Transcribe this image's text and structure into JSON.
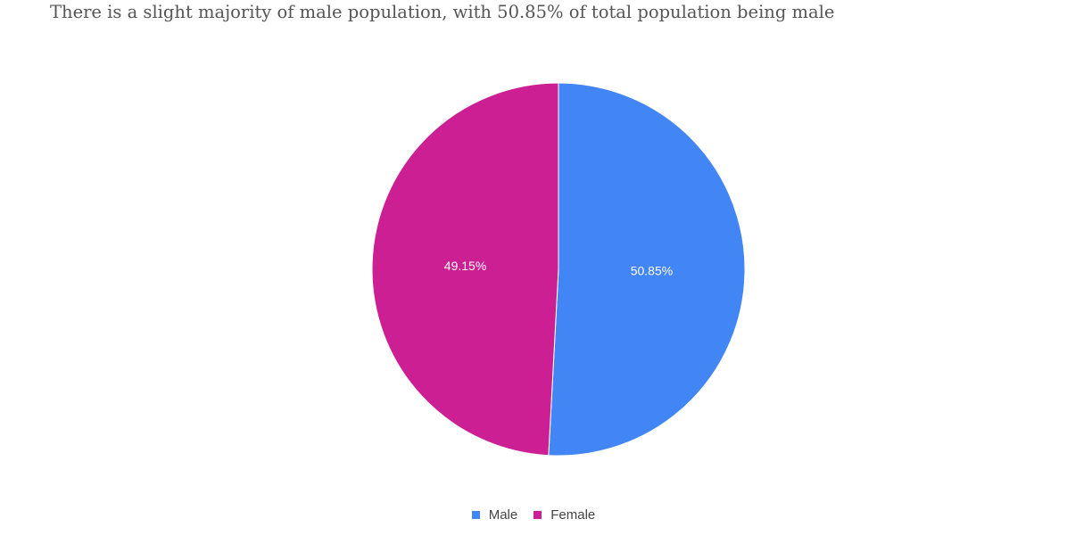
{
  "chart_data": {
    "type": "pie",
    "title": "",
    "subtitle": "There is a slight majority of male population, with 50.85% of total population being male",
    "slices": [
      {
        "label": "Male",
        "value": 50.85,
        "display": "50.85%",
        "color": "#4285f4"
      },
      {
        "label": "Female",
        "value": 49.15,
        "display": "49.15%",
        "color": "#cc1f93"
      }
    ],
    "legend_position": "bottom"
  }
}
